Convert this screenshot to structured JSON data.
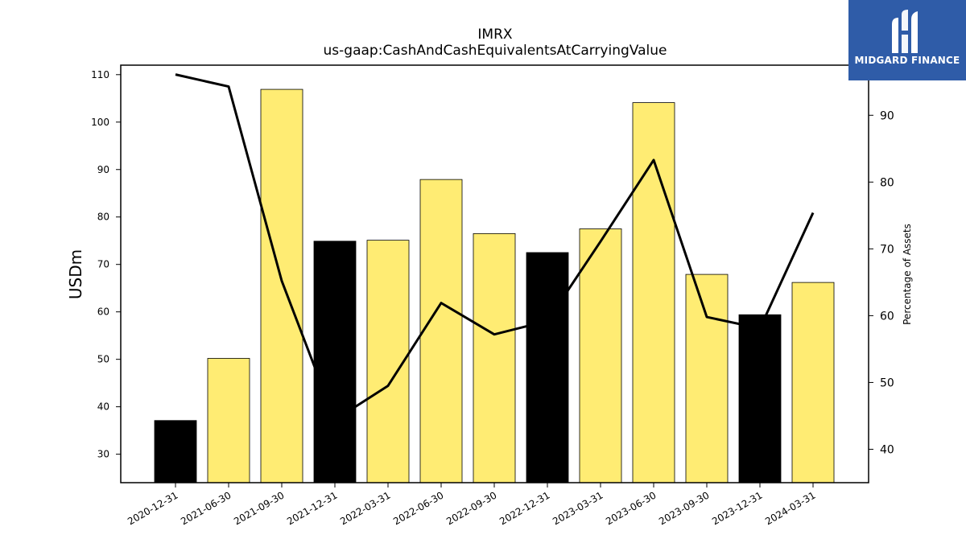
{
  "chart_data": {
    "type": "bar",
    "title": "IMRX",
    "subtitle": "us-gaap:CashAndCashEquivalentsAtCarryingValue",
    "ylabel": "USDm",
    "y2label": "Percentage of Assets",
    "ylim": [
      24,
      112
    ],
    "y2lim": [
      35,
      97.5
    ],
    "yticks": [
      30,
      40,
      50,
      60,
      70,
      80,
      90,
      100,
      110
    ],
    "y2ticks": [
      40,
      50,
      60,
      70,
      80,
      90
    ],
    "categories": [
      "2020-12-31",
      "2021-06-30",
      "2021-09-30",
      "2021-12-31",
      "2022-03-31",
      "2022-06-30",
      "2022-09-30",
      "2022-12-31",
      "2023-03-31",
      "2023-06-30",
      "2023-09-30",
      "2023-12-31",
      "2024-03-31"
    ],
    "series": [
      {
        "kind": "bar",
        "values": [
          37.1,
          50.2,
          106.9,
          74.9,
          75.1,
          87.9,
          76.5,
          72.5,
          77.5,
          104.1,
          67.9,
          59.4,
          66.2
        ],
        "highlight": [
          true,
          false,
          false,
          true,
          false,
          false,
          false,
          true,
          false,
          false,
          false,
          true,
          false
        ]
      },
      {
        "kind": "line",
        "axis": "right",
        "values": [
          96.1,
          94.3,
          65.2,
          44.4,
          49.5,
          61.9,
          57.2,
          59.2,
          71.1,
          83.3,
          59.8,
          58.1,
          75.4
        ]
      }
    ],
    "colors": {
      "bar": "#ffec73",
      "bar_highlight": "#000000",
      "line": "#000000",
      "edge": "#000000"
    },
    "grid": false
  },
  "logo": {
    "text": "MIDGARD FINANCE",
    "background": "#2f5ca8"
  }
}
